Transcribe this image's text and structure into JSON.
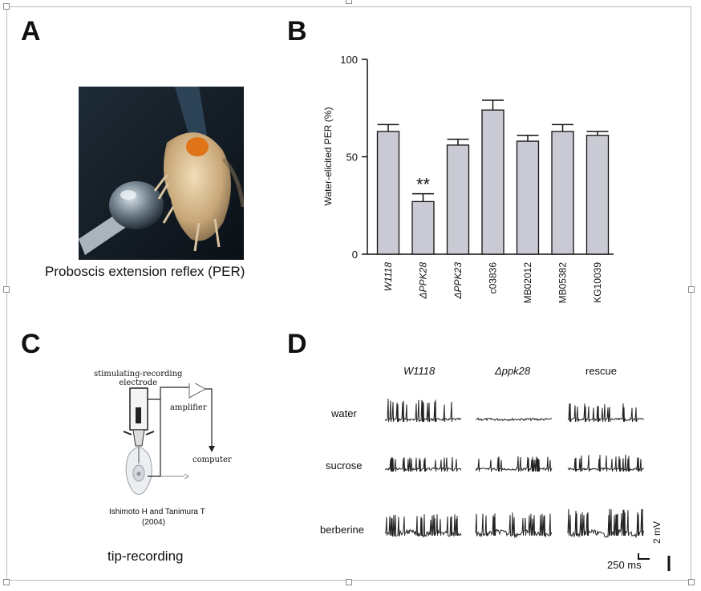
{
  "panels": {
    "a": {
      "letter": "A",
      "caption": "Proboscis extension reflex (PER)"
    },
    "b": {
      "letter": "B"
    },
    "c": {
      "letter": "C",
      "electrode_label": "stimulating-recording\nelectrode",
      "amplifier_label": "amplifier",
      "computer_label": "computer",
      "citation_line1": "Ishimoto H and Tanimura T",
      "citation_line2": "(2004)",
      "caption": "tip-recording"
    },
    "d": {
      "letter": "D",
      "columns": [
        "W1118",
        "Δppk28",
        "rescue"
      ],
      "rows": [
        "water",
        "sucrose",
        "berberine"
      ],
      "scale_time": "250 ms",
      "scale_voltage": "2 mV"
    }
  },
  "chart_data": {
    "type": "bar",
    "ylabel": "Water-elicited PER (%)",
    "ylim": [
      0,
      100
    ],
    "yticks": [
      0,
      50,
      100
    ],
    "categories": [
      "W1118",
      "ΔPPK28",
      "ΔPPK23",
      "c03836",
      "MB02012",
      "MB05382",
      "KG10039"
    ],
    "italic_categories": [
      "W1118",
      "ΔPPK28",
      "ΔPPK23"
    ],
    "values": [
      63,
      27,
      56,
      74,
      58,
      63,
      61
    ],
    "errors": [
      3.5,
      4,
      3,
      5,
      3,
      3.5,
      2
    ],
    "annotations": [
      {
        "category": "ΔPPK28",
        "text": "**"
      }
    ],
    "bar_color": "#c9cad3"
  }
}
